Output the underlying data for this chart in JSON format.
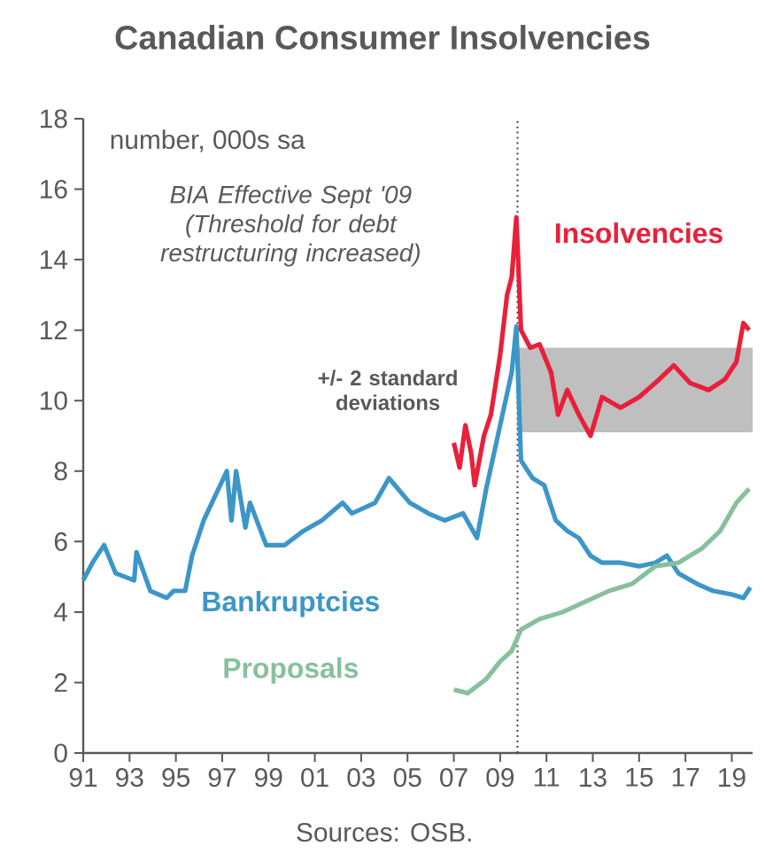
{
  "chart_data": {
    "type": "line",
    "title": "Canadian Consumer Insolvencies",
    "annotations": [
      "number, 000s sa",
      "Sources: OSB."
    ],
    "xlim": [
      1991,
      2019.9
    ],
    "xticks": [
      {
        "value": 1991,
        "label": "91"
      },
      {
        "value": 1993,
        "label": "93"
      },
      {
        "value": 1995,
        "label": "95"
      },
      {
        "value": 1997,
        "label": "97"
      },
      {
        "value": 1999,
        "label": "99"
      },
      {
        "value": 2001,
        "label": "01"
      },
      {
        "value": 2003,
        "label": "03"
      },
      {
        "value": 2005,
        "label": "05"
      },
      {
        "value": 2007,
        "label": "07"
      },
      {
        "value": 2009,
        "label": "09"
      },
      {
        "value": 2011,
        "label": "11"
      },
      {
        "value": 2013,
        "label": "13"
      },
      {
        "value": 2015,
        "label": "15"
      },
      {
        "value": 2017,
        "label": "17"
      },
      {
        "value": 2019,
        "label": "19"
      }
    ],
    "ylim": [
      0,
      18
    ],
    "yticks": [
      0,
      2,
      4,
      6,
      8,
      10,
      12,
      14,
      16,
      18
    ],
    "legend": false,
    "ref_lines": [
      {
        "axis": "x",
        "value": 2009.75,
        "label": "BIA Effective Sept '09 (Threshold for debt restructuring increased)",
        "color": "#404040",
        "line_style": "dotted"
      }
    ],
    "bands": [
      {
        "axis": "y",
        "from": 9.1,
        "to": 11.5,
        "label": "+/- 2 standard deviations",
        "color": "#bfbfbf"
      }
    ],
    "series": [
      {
        "name": "Bankruptcies",
        "color": "#3c96c8",
        "x": [
          1991.0,
          1991.4,
          1991.9,
          1992.4,
          1993.2,
          1993.3,
          1993.9,
          1994.6,
          1994.9,
          1995.4,
          1995.7,
          1996.2,
          1996.7,
          1997.2,
          1997.4,
          1997.6,
          1998.0,
          1998.2,
          1998.9,
          1999.7,
          2000.5,
          2001.3,
          2002.2,
          2002.6,
          2003.6,
          2004.2,
          2005.1,
          2005.9,
          2006.6,
          2007.4,
          2008.0,
          2008.4,
          2009.0,
          2009.5,
          2009.7,
          2009.9,
          2010.4,
          2010.9,
          2011.4,
          2011.9,
          2012.4,
          2012.9,
          2013.4,
          2014.2,
          2015.0,
          2015.7,
          2016.2,
          2016.7,
          2017.5,
          2018.2,
          2019.0,
          2019.5,
          2019.8
        ],
        "values": [
          4.9,
          5.4,
          5.9,
          5.1,
          4.9,
          5.7,
          4.6,
          4.4,
          4.6,
          4.6,
          5.6,
          6.6,
          7.3,
          8.0,
          6.6,
          8.0,
          6.4,
          7.1,
          5.9,
          5.9,
          6.3,
          6.6,
          7.1,
          6.8,
          7.1,
          7.8,
          7.1,
          6.8,
          6.6,
          6.8,
          6.1,
          7.5,
          9.3,
          10.8,
          12.1,
          8.3,
          7.8,
          7.6,
          6.6,
          6.3,
          6.1,
          5.6,
          5.4,
          5.4,
          5.3,
          5.4,
          5.6,
          5.1,
          4.8,
          4.6,
          4.5,
          4.4,
          4.7
        ]
      },
      {
        "name": "Insolvencies",
        "color": "#e8203a",
        "x": [
          2007.0,
          2007.25,
          2007.5,
          2007.75,
          2007.9,
          2008.3,
          2008.6,
          2009.0,
          2009.3,
          2009.5,
          2009.7,
          2009.9,
          2010.3,
          2010.7,
          2011.2,
          2011.5,
          2011.9,
          2012.4,
          2012.9,
          2013.4,
          2014.2,
          2015.0,
          2015.7,
          2016.5,
          2017.2,
          2018.0,
          2018.7,
          2019.2,
          2019.5,
          2019.75
        ],
        "values": [
          8.8,
          8.1,
          9.3,
          8.5,
          7.6,
          9.0,
          9.6,
          11.3,
          13.0,
          13.5,
          15.2,
          12.0,
          11.5,
          11.6,
          10.8,
          9.6,
          10.3,
          9.6,
          9.0,
          10.1,
          9.8,
          10.1,
          10.5,
          11.0,
          10.5,
          10.3,
          10.6,
          11.1,
          12.2,
          12.0
        ]
      },
      {
        "name": "Proposals",
        "color": "#88c09c",
        "x": [
          2007.0,
          2007.6,
          2008.4,
          2009.0,
          2009.5,
          2009.9,
          2010.7,
          2011.7,
          2012.7,
          2013.7,
          2014.7,
          2015.7,
          2016.7,
          2017.7,
          2018.5,
          2019.2,
          2019.75
        ],
        "values": [
          1.8,
          1.7,
          2.1,
          2.6,
          2.9,
          3.5,
          3.8,
          4.0,
          4.3,
          4.6,
          4.8,
          5.3,
          5.4,
          5.8,
          6.3,
          7.1,
          7.5
        ]
      }
    ]
  }
}
